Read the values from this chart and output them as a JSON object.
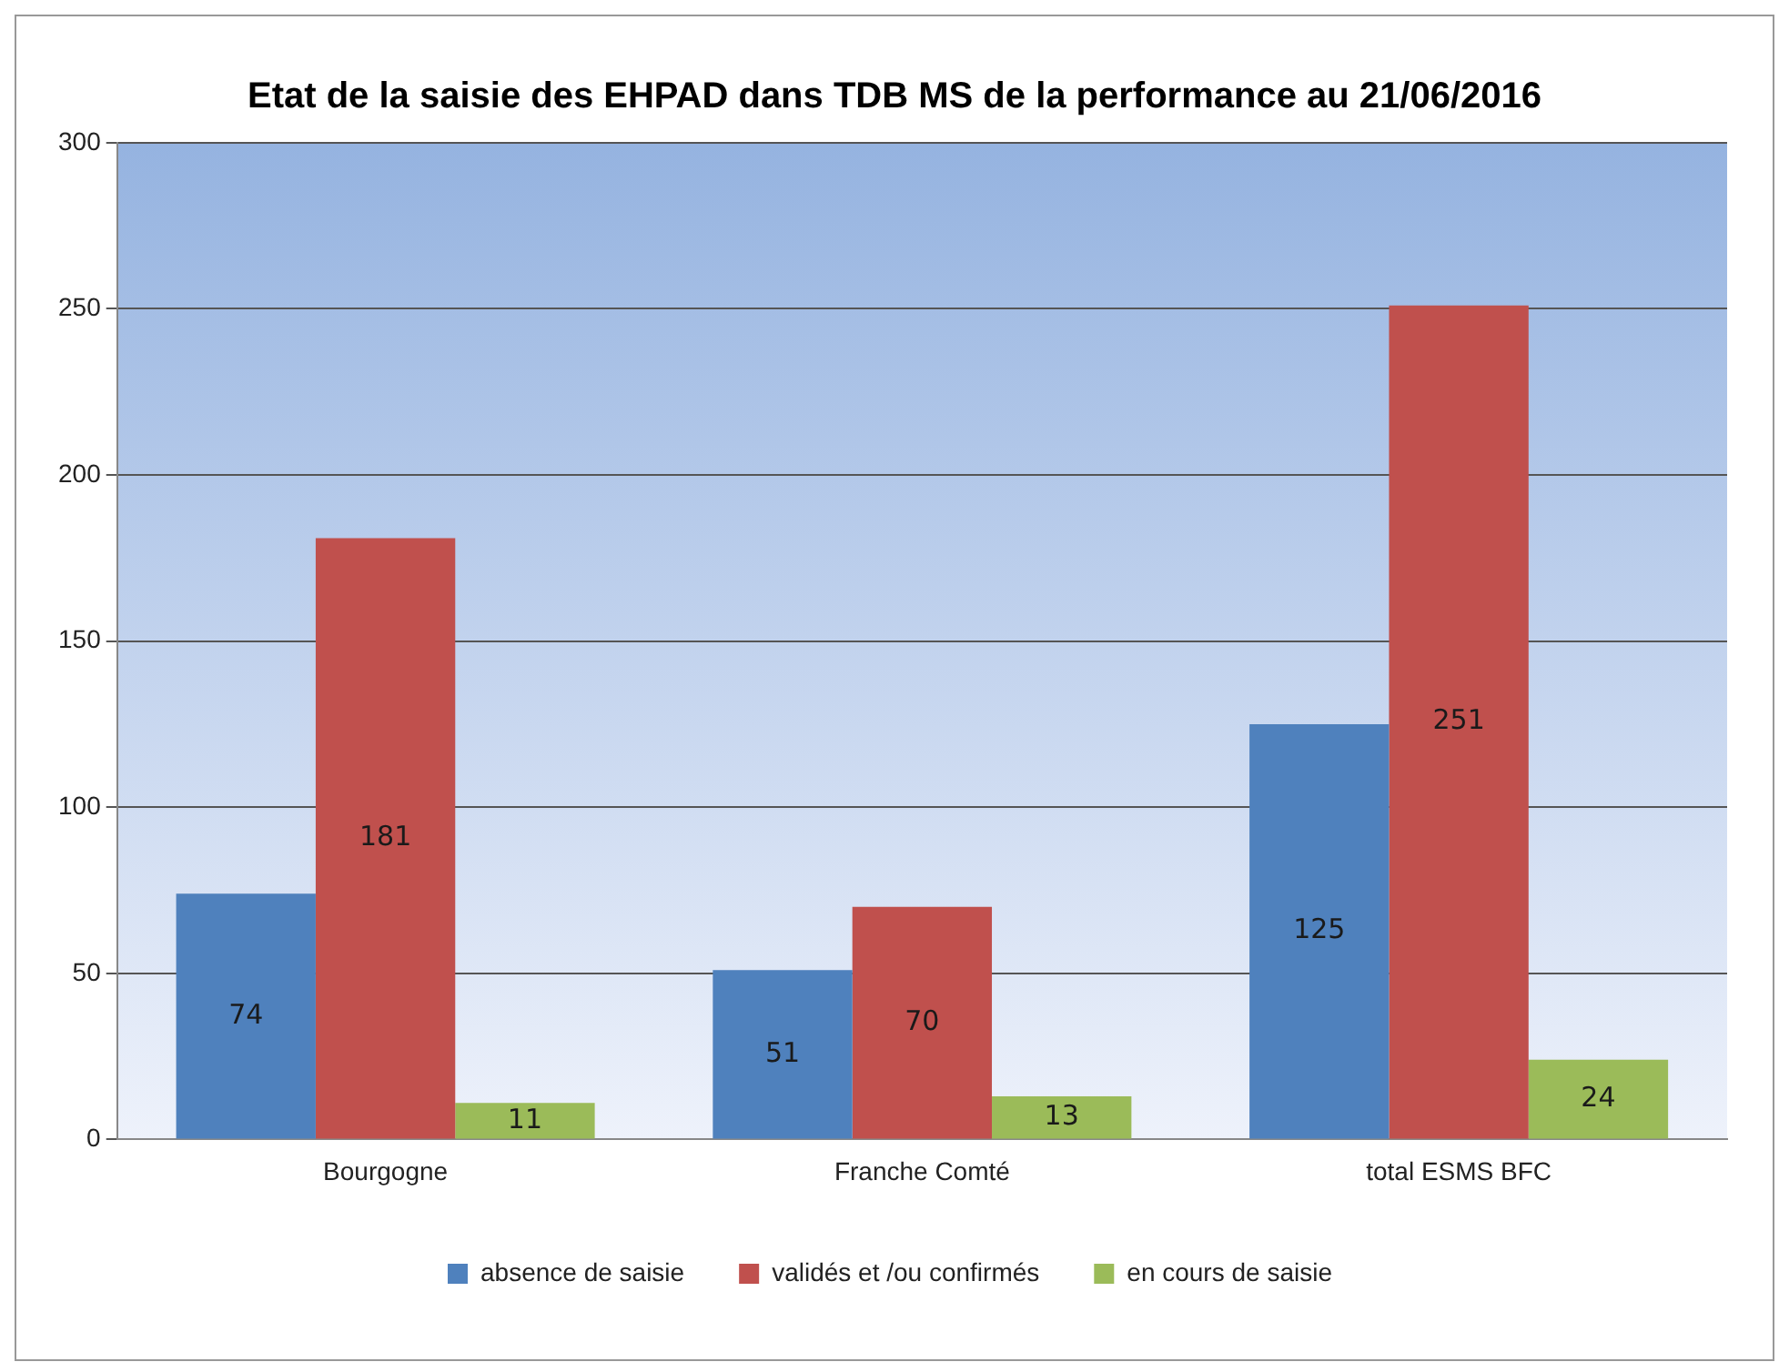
{
  "chart_data": {
    "type": "bar",
    "title": "Etat de la saisie des EHPAD dans TDB MS de la performance au 21/06/2016",
    "categories": [
      "Bourgogne",
      "Franche Comté",
      "total ESMS BFC"
    ],
    "series": [
      {
        "name": "absence de saisie",
        "color": "#4f81bd",
        "values": [
          74,
          51,
          125
        ]
      },
      {
        "name": "validés et /ou confirmés",
        "color": "#c0504d",
        "values": [
          181,
          70,
          251
        ]
      },
      {
        "name": "en cours de saisie",
        "color": "#9bbb59",
        "values": [
          11,
          13,
          24
        ]
      }
    ],
    "ylim": [
      0,
      300
    ],
    "yticks": [
      0,
      50,
      100,
      150,
      200,
      250,
      300
    ],
    "grid": "y",
    "legend": "bottom",
    "data_labels": true
  }
}
